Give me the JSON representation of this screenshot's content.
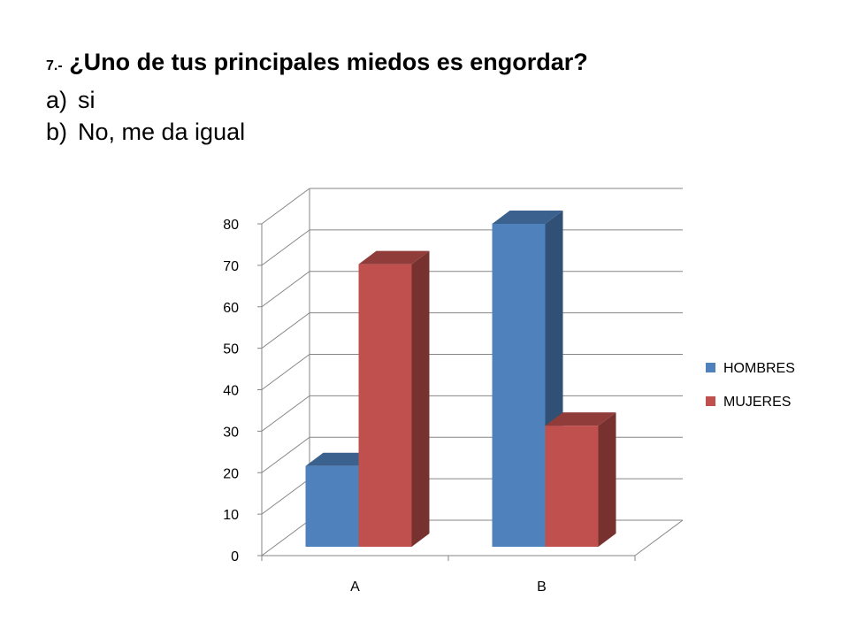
{
  "question": {
    "number": "7.-",
    "text": "¿Uno de tus principales miedos es engordar?",
    "options": [
      {
        "letter": "a)",
        "text": "si"
      },
      {
        "letter": "b)",
        "text": "No, me da igual"
      }
    ]
  },
  "chart_data": {
    "type": "bar",
    "categories": [
      "A",
      "B"
    ],
    "series": [
      {
        "name": "HOMBRES",
        "values": [
          20,
          80
        ],
        "color": "#4F81BD"
      },
      {
        "name": "MUJERES",
        "values": [
          70,
          30
        ],
        "color": "#C0504D"
      }
    ],
    "yticks": [
      "0",
      "10",
      "20",
      "30",
      "40",
      "50",
      "60",
      "70",
      "80"
    ],
    "ylim": [
      0,
      80
    ],
    "grid": true,
    "legend_position": "right",
    "style": "3d-clustered-column"
  }
}
